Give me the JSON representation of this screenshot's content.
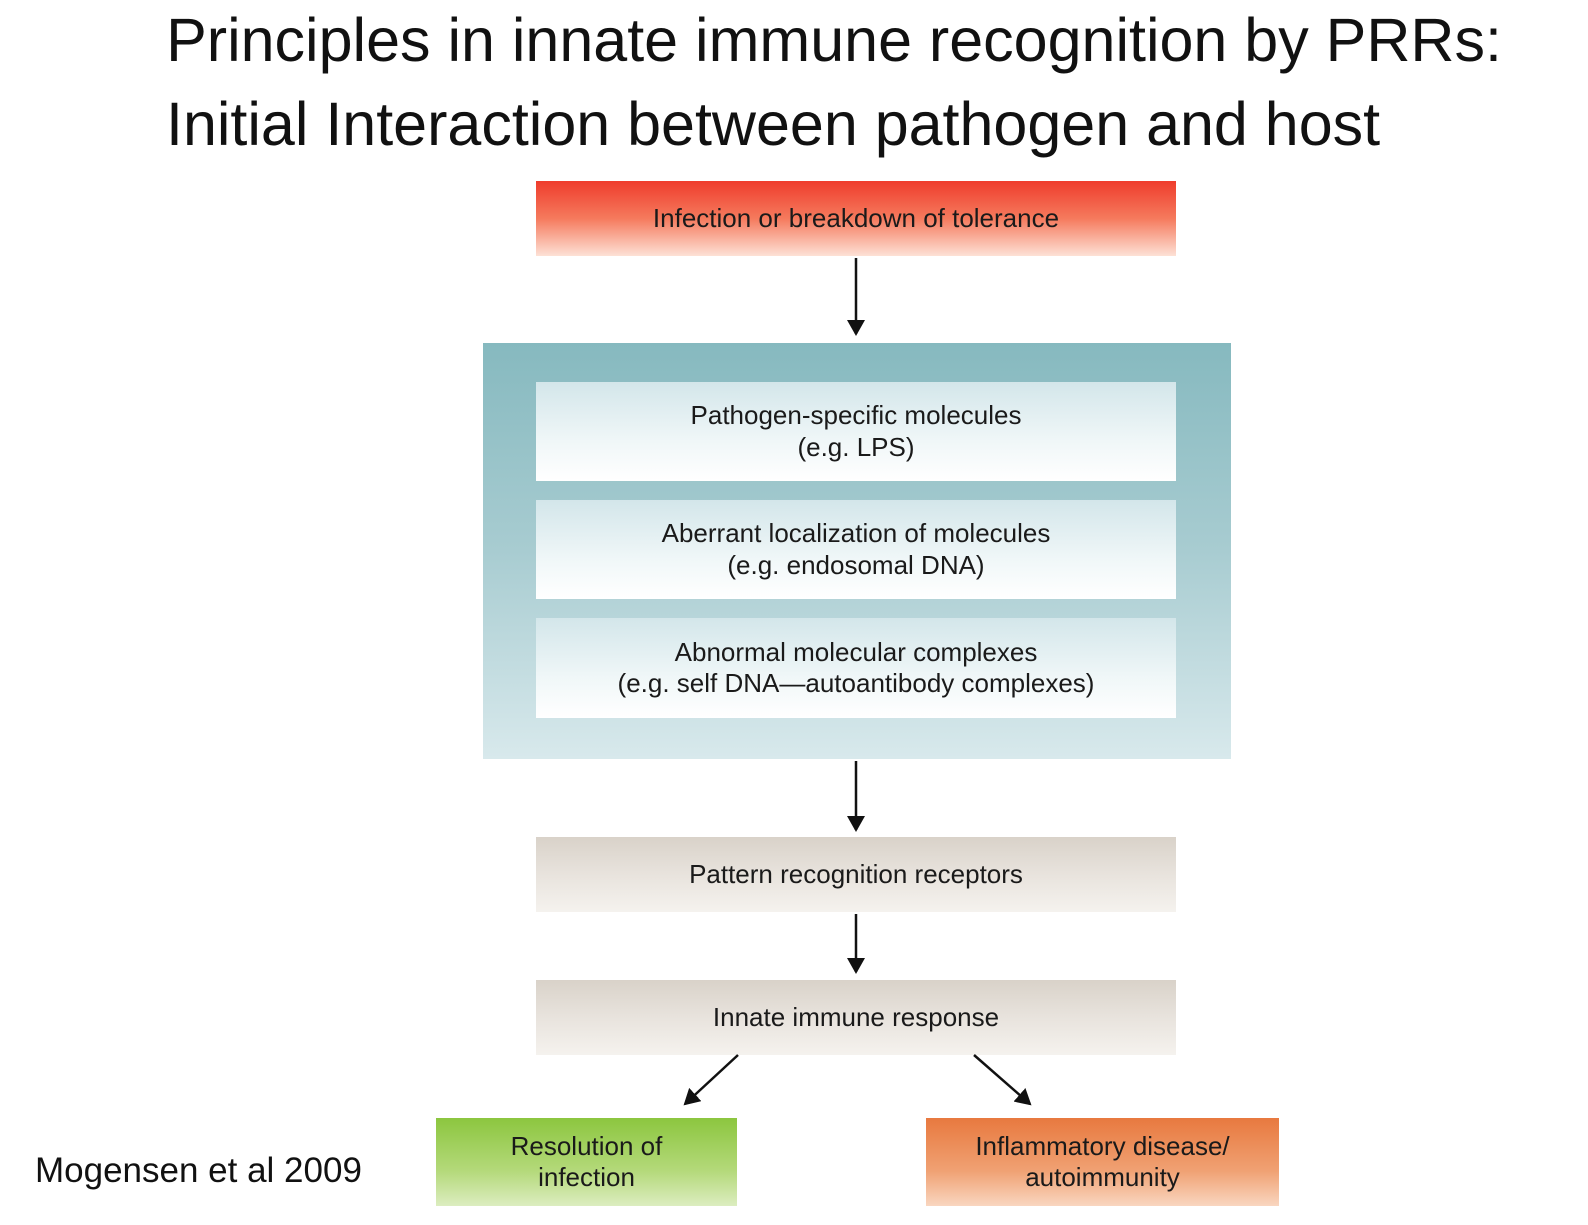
{
  "slide": {
    "title_line1": "Principles in innate immune recognition by PRRs:",
    "title_line2": "Initial Interaction between pathogen and host",
    "citation": "Mogensen et al 2009"
  },
  "diagram": {
    "infection": "Infection or breakdown of tolerance",
    "pathogen": {
      "line1": "Pathogen-specific molecules",
      "line2": "(e.g. LPS)"
    },
    "aberrant": {
      "line1": "Aberrant localization of molecules",
      "line2": "(e.g. endosomal DNA)"
    },
    "abnormal": {
      "line1": "Abnormal molecular complexes",
      "line2": "(e.g. self DNA—autoantibody complexes)"
    },
    "prr": "Pattern recognition receptors",
    "innate": "Innate immune response",
    "resolution": {
      "line1": "Resolution of",
      "line2": "infection"
    },
    "inflammatory": {
      "line1": "Inflammatory disease/",
      "line2": "autoimmunity"
    }
  }
}
